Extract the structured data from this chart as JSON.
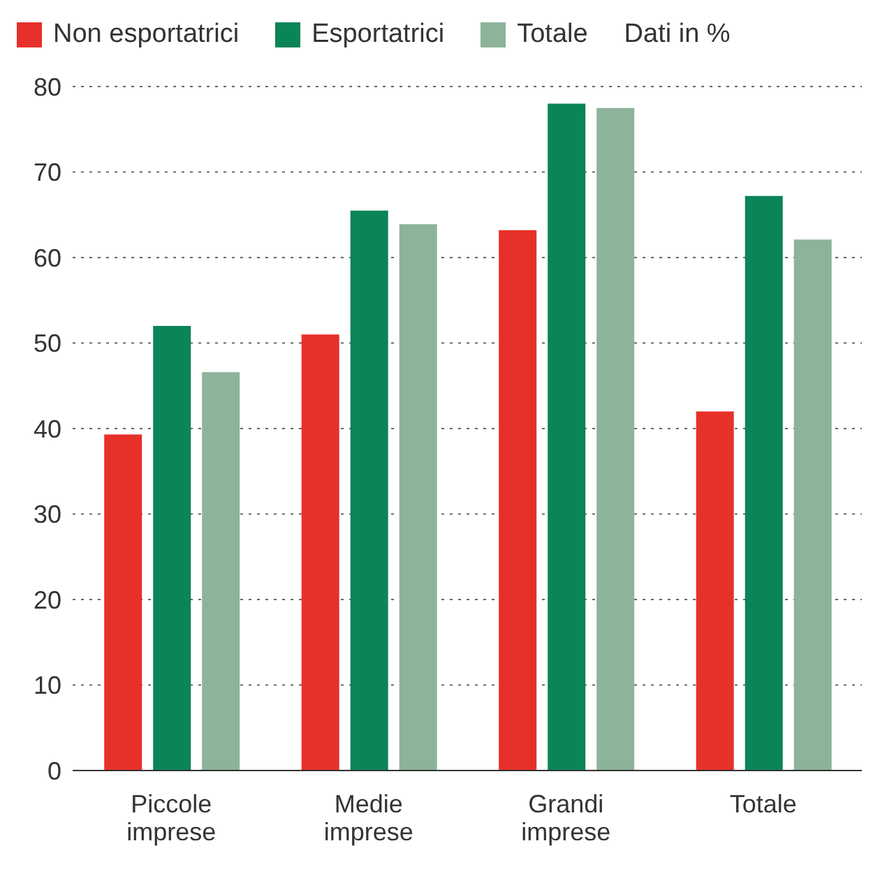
{
  "chart_data": {
    "type": "bar",
    "categories": [
      "Piccole imprese",
      "Medie imprese",
      "Grandi imprese",
      "Totale"
    ],
    "series": [
      {
        "name": "Non esportatrici",
        "color": "#e8302a",
        "values": [
          39.3,
          51.0,
          63.2,
          42.0
        ]
      },
      {
        "name": "Esportatrici",
        "color": "#0b8457",
        "values": [
          52.0,
          65.5,
          78.0,
          67.2
        ]
      },
      {
        "name": "Totale",
        "color": "#8db39a",
        "values": [
          46.6,
          63.9,
          77.5,
          62.1
        ]
      }
    ],
    "annotations": [
      "Dati in %"
    ],
    "ylim": [
      0,
      80
    ],
    "yticks": [
      0,
      10,
      20,
      30,
      40,
      50,
      60,
      70,
      80
    ],
    "grid": "y",
    "legend": "top"
  }
}
